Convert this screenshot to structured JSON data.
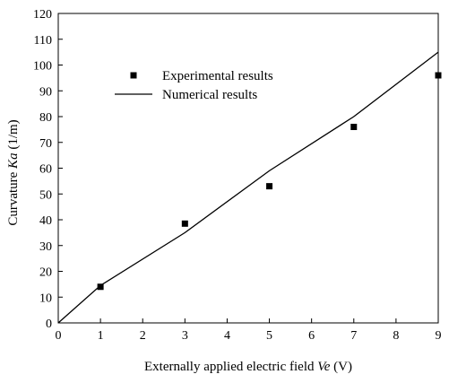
{
  "chart_data": {
    "type": "line",
    "xlabel_parts": [
      "Externally applied electric field ",
      "Ve",
      " (V)"
    ],
    "ylabel_parts": [
      "Curvature ",
      "Ka",
      " (1/m)"
    ],
    "xlim": [
      0,
      9
    ],
    "ylim": [
      0,
      120
    ],
    "xticks": [
      0,
      1,
      2,
      3,
      4,
      5,
      6,
      7,
      8,
      9
    ],
    "yticks": [
      0,
      10,
      20,
      30,
      40,
      50,
      60,
      70,
      80,
      90,
      100,
      110,
      120
    ],
    "grid": false,
    "legend_position": "upper-left",
    "series": [
      {
        "name": "Experimental results",
        "kind": "scatter",
        "marker": "square",
        "color": "#000000",
        "x": [
          1,
          3,
          5,
          7,
          9
        ],
        "y": [
          14,
          38.5,
          53,
          76,
          96
        ]
      },
      {
        "name": "Numerical results",
        "kind": "line",
        "color": "#000000",
        "x": [
          0,
          1,
          3,
          5,
          7,
          9
        ],
        "y": [
          0,
          14.5,
          35,
          59,
          80,
          105
        ]
      }
    ]
  }
}
